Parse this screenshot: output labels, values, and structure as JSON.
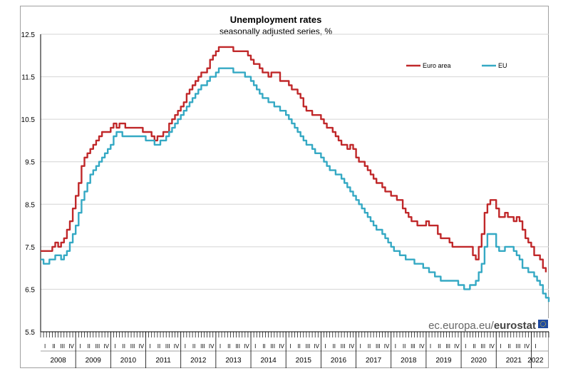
{
  "chart_data": {
    "type": "line",
    "title": "Unemployment rates",
    "subtitle": "seasonally adjusted series, %",
    "ylim": [
      5.5,
      12.5
    ],
    "yticks": [
      "5.5",
      "6.5",
      "7.5",
      "8.5",
      "9.5",
      "10.5",
      "11.5",
      "12.5"
    ],
    "grid": true,
    "legend_position": "top-right",
    "quarter_labels": [
      "I",
      "II",
      "III",
      "IV"
    ],
    "years": [
      "2008",
      "2009",
      "2010",
      "2011",
      "2012",
      "2013",
      "2014",
      "2015",
      "2016",
      "2017",
      "2018",
      "2019",
      "2020",
      "2021",
      "2022"
    ],
    "series": [
      {
        "name": "Euro area",
        "color": "#c0282a",
        "anchors": [
          [
            2008.0,
            7.4
          ],
          [
            2008.25,
            7.4
          ],
          [
            2008.4,
            7.6
          ],
          [
            2008.5,
            7.5
          ],
          [
            2008.7,
            7.8
          ],
          [
            2008.85,
            8.1
          ],
          [
            2009.0,
            8.7
          ],
          [
            2009.2,
            9.5
          ],
          [
            2009.5,
            9.9
          ],
          [
            2009.75,
            10.2
          ],
          [
            2009.9,
            10.2
          ],
          [
            2010.05,
            10.4
          ],
          [
            2010.15,
            10.3
          ],
          [
            2010.3,
            10.4
          ],
          [
            2010.45,
            10.3
          ],
          [
            2010.8,
            10.3
          ],
          [
            2010.95,
            10.2
          ],
          [
            2011.1,
            10.2
          ],
          [
            2011.25,
            10.0
          ],
          [
            2011.4,
            10.1
          ],
          [
            2011.55,
            10.2
          ],
          [
            2011.75,
            10.5
          ],
          [
            2012.0,
            10.8
          ],
          [
            2012.25,
            11.2
          ],
          [
            2012.5,
            11.5
          ],
          [
            2012.75,
            11.7
          ],
          [
            2012.9,
            12.0
          ],
          [
            2013.0,
            12.1
          ],
          [
            2013.1,
            12.2
          ],
          [
            2013.4,
            12.2
          ],
          [
            2013.5,
            12.1
          ],
          [
            2013.8,
            12.1
          ],
          [
            2014.0,
            11.9
          ],
          [
            2014.25,
            11.7
          ],
          [
            2014.4,
            11.6
          ],
          [
            2014.5,
            11.5
          ],
          [
            2014.6,
            11.6
          ],
          [
            2014.75,
            11.6
          ],
          [
            2014.85,
            11.4
          ],
          [
            2015.0,
            11.4
          ],
          [
            2015.2,
            11.2
          ],
          [
            2015.35,
            11.1
          ],
          [
            2015.5,
            10.8
          ],
          [
            2015.6,
            10.7
          ],
          [
            2015.85,
            10.6
          ],
          [
            2016.0,
            10.5
          ],
          [
            2016.2,
            10.3
          ],
          [
            2016.35,
            10.2
          ],
          [
            2016.6,
            9.9
          ],
          [
            2016.75,
            9.8
          ],
          [
            2016.85,
            9.9
          ],
          [
            2017.0,
            9.6
          ],
          [
            2017.25,
            9.4
          ],
          [
            2017.5,
            9.1
          ],
          [
            2017.75,
            8.9
          ],
          [
            2017.9,
            8.8
          ],
          [
            2018.0,
            8.7
          ],
          [
            2018.25,
            8.6
          ],
          [
            2018.4,
            8.3
          ],
          [
            2018.5,
            8.2
          ],
          [
            2018.75,
            8.0
          ],
          [
            2018.9,
            8.0
          ],
          [
            2019.0,
            8.1
          ],
          [
            2019.1,
            8.0
          ],
          [
            2019.25,
            8.0
          ],
          [
            2019.4,
            7.7
          ],
          [
            2019.6,
            7.7
          ],
          [
            2019.75,
            7.5
          ],
          [
            2020.0,
            7.5
          ],
          [
            2020.2,
            7.5
          ],
          [
            2020.3,
            7.4
          ],
          [
            2020.4,
            7.2
          ],
          [
            2020.55,
            7.6
          ],
          [
            2020.7,
            8.5
          ],
          [
            2020.8,
            8.6
          ],
          [
            2020.9,
            8.6
          ],
          [
            2021.0,
            8.4
          ],
          [
            2021.1,
            8.2
          ],
          [
            2021.25,
            8.3
          ],
          [
            2021.4,
            8.2
          ],
          [
            2021.5,
            8.1
          ],
          [
            2021.6,
            8.2
          ],
          [
            2021.75,
            7.9
          ],
          [
            2021.9,
            7.6
          ],
          [
            2022.0,
            7.5
          ],
          [
            2022.1,
            7.3
          ],
          [
            2022.25,
            7.2
          ],
          [
            2022.35,
            7.0
          ],
          [
            2022.45,
            6.8
          ]
        ]
      },
      {
        "name": "EU",
        "color": "#35a9c4",
        "anchors": [
          [
            2008.0,
            7.2
          ],
          [
            2008.15,
            7.1
          ],
          [
            2008.3,
            7.2
          ],
          [
            2008.45,
            7.3
          ],
          [
            2008.55,
            7.2
          ],
          [
            2008.8,
            7.5
          ],
          [
            2009.0,
            8.0
          ],
          [
            2009.2,
            8.7
          ],
          [
            2009.4,
            9.2
          ],
          [
            2009.75,
            9.6
          ],
          [
            2010.0,
            9.9
          ],
          [
            2010.15,
            10.2
          ],
          [
            2010.45,
            10.1
          ],
          [
            2010.85,
            10.1
          ],
          [
            2011.0,
            10.0
          ],
          [
            2011.15,
            10.0
          ],
          [
            2011.3,
            9.9
          ],
          [
            2011.45,
            10.0
          ],
          [
            2011.6,
            10.1
          ],
          [
            2011.75,
            10.3
          ],
          [
            2012.0,
            10.6
          ],
          [
            2012.25,
            10.9
          ],
          [
            2012.5,
            11.2
          ],
          [
            2012.75,
            11.4
          ],
          [
            2013.0,
            11.6
          ],
          [
            2013.1,
            11.7
          ],
          [
            2013.4,
            11.7
          ],
          [
            2013.5,
            11.6
          ],
          [
            2013.75,
            11.6
          ],
          [
            2014.0,
            11.4
          ],
          [
            2014.25,
            11.1
          ],
          [
            2014.5,
            10.9
          ],
          [
            2014.75,
            10.8
          ],
          [
            2015.0,
            10.6
          ],
          [
            2015.25,
            10.3
          ],
          [
            2015.5,
            10.0
          ],
          [
            2015.75,
            9.8
          ],
          [
            2016.0,
            9.6
          ],
          [
            2016.25,
            9.3
          ],
          [
            2016.5,
            9.2
          ],
          [
            2016.75,
            8.9
          ],
          [
            2017.0,
            8.6
          ],
          [
            2017.25,
            8.3
          ],
          [
            2017.5,
            8.0
          ],
          [
            2017.75,
            7.8
          ],
          [
            2018.0,
            7.5
          ],
          [
            2018.25,
            7.3
          ],
          [
            2018.5,
            7.2
          ],
          [
            2018.75,
            7.1
          ],
          [
            2019.0,
            7.0
          ],
          [
            2019.25,
            6.8
          ],
          [
            2019.5,
            6.7
          ],
          [
            2019.75,
            6.7
          ],
          [
            2020.0,
            6.6
          ],
          [
            2020.1,
            6.5
          ],
          [
            2020.35,
            6.6
          ],
          [
            2020.55,
            7.0
          ],
          [
            2020.75,
            7.8
          ],
          [
            2020.9,
            7.8
          ],
          [
            2021.0,
            7.5
          ],
          [
            2021.1,
            7.4
          ],
          [
            2021.25,
            7.5
          ],
          [
            2021.45,
            7.5
          ],
          [
            2021.6,
            7.3
          ],
          [
            2021.75,
            7.0
          ],
          [
            2022.0,
            6.9
          ],
          [
            2022.25,
            6.6
          ],
          [
            2022.4,
            6.3
          ],
          [
            2022.5,
            6.2
          ]
        ]
      }
    ]
  },
  "watermark": {
    "site": "ec.europa.eu/",
    "brand": "eurostat"
  }
}
